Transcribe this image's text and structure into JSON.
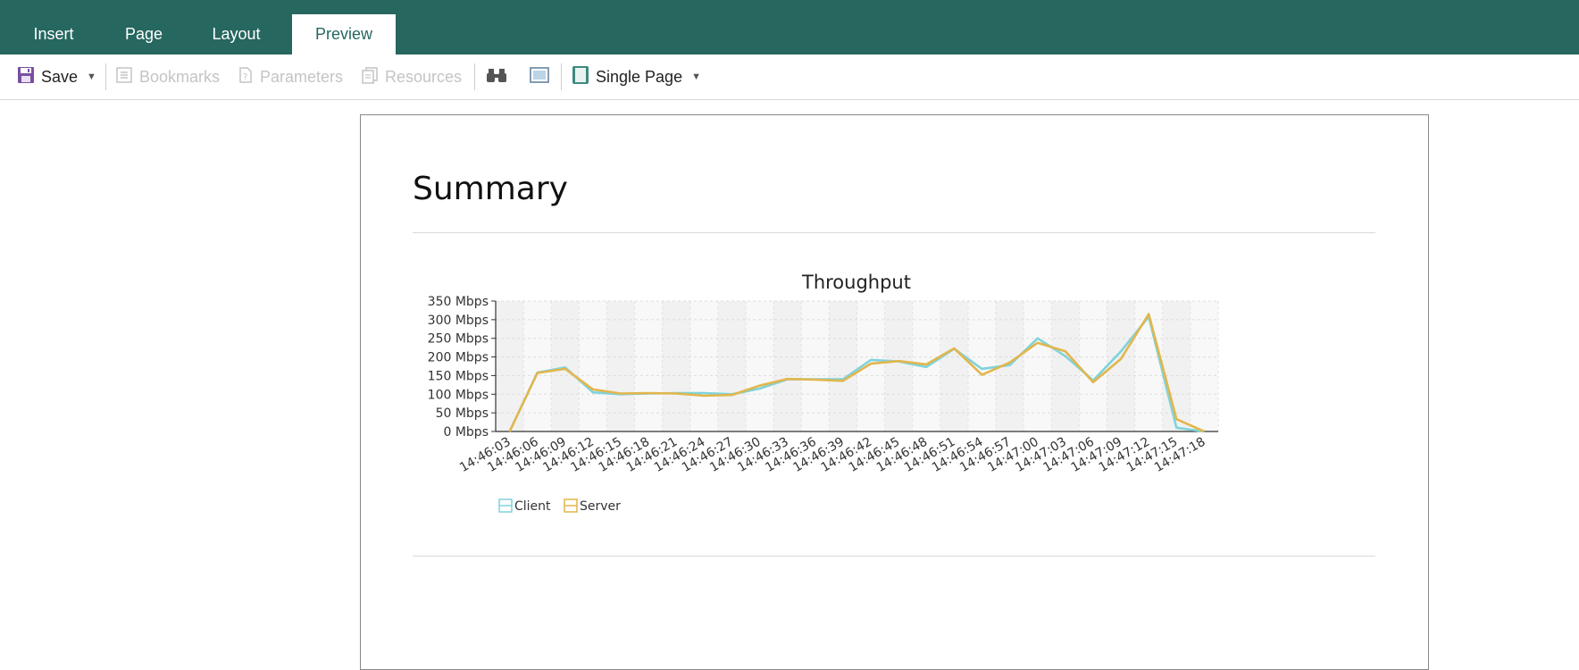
{
  "tabs": [
    {
      "label": "Insert",
      "active": false
    },
    {
      "label": "Page",
      "active": false
    },
    {
      "label": "Layout",
      "active": false
    },
    {
      "label": "Preview",
      "active": true
    }
  ],
  "toolbar": {
    "save_label": "Save",
    "bookmarks_label": "Bookmarks",
    "parameters_label": "Parameters",
    "resources_label": "Resources",
    "view_mode_label": "Single Page",
    "icons": {
      "save": "floppy-disk-icon",
      "bookmarks": "bookmarks-icon",
      "parameters": "parameters-icon",
      "resources": "resources-icon",
      "find": "binoculars-icon",
      "fullscreen": "fullscreen-icon",
      "view_mode": "single-page-icon"
    }
  },
  "colors": {
    "tab_bar": "#26675f",
    "client_series": "#7fd3dc",
    "server_series": "#e2b64c",
    "save_icon": "#7a4fa0"
  },
  "report": {
    "heading": "Summary"
  },
  "chart_data": {
    "type": "line",
    "title": "Throughput",
    "xlabel": "",
    "ylabel": "",
    "categories": [
      "14:46:03",
      "14:46:06",
      "14:46:09",
      "14:46:12",
      "14:46:15",
      "14:46:18",
      "14:46:21",
      "14:46:24",
      "14:46:27",
      "14:46:30",
      "14:46:33",
      "14:46:36",
      "14:46:39",
      "14:46:42",
      "14:46:45",
      "14:46:48",
      "14:46:51",
      "14:46:54",
      "14:46:57",
      "14:47:00",
      "14:47:03",
      "14:47:06",
      "14:47:09",
      "14:47:12",
      "14:47:15",
      "14:47:18"
    ],
    "y_ticks": [
      "0 Mbps",
      "50 Mbps",
      "100 Mbps",
      "150 Mbps",
      "200 Mbps",
      "250 Mbps",
      "300 Mbps",
      "350 Mbps"
    ],
    "ylim": [
      0,
      350
    ],
    "grid": true,
    "legend_position": "bottom-left",
    "series": [
      {
        "name": "Client",
        "color": "#7fd3dc",
        "values": [
          0,
          158,
          172,
          105,
          100,
          102,
          103,
          103,
          100,
          115,
          140,
          140,
          140,
          192,
          188,
          173,
          222,
          168,
          178,
          250,
          202,
          137,
          215,
          308,
          10,
          0
        ]
      },
      {
        "name": "Server",
        "color": "#e2b64c",
        "values": [
          0,
          157,
          168,
          113,
          102,
          103,
          102,
          96,
          98,
          123,
          141,
          139,
          136,
          182,
          189,
          180,
          223,
          152,
          185,
          238,
          215,
          132,
          195,
          315,
          33,
          0
        ]
      }
    ]
  }
}
